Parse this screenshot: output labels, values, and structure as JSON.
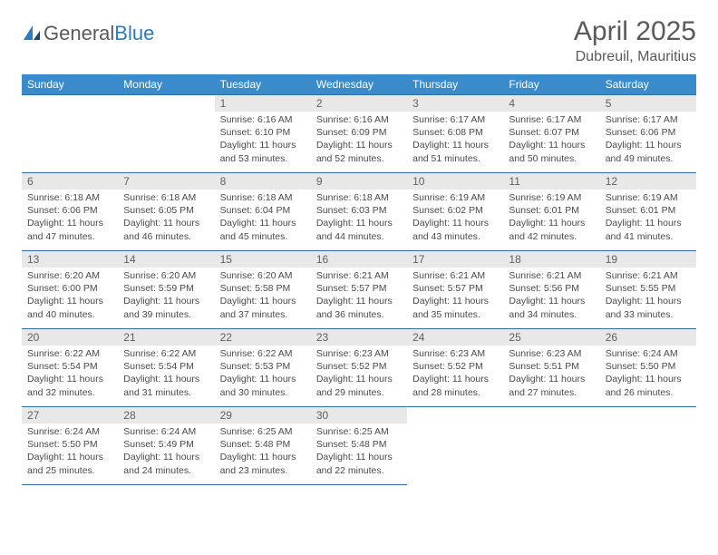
{
  "brand": {
    "part1": "General",
    "part2": "Blue"
  },
  "title": "April 2025",
  "location": "Dubreuil, Mauritius",
  "colors": {
    "header_bg": "#3b8bcb",
    "header_text": "#ffffff",
    "border": "#2f6fa8",
    "daynum_bg": "#e8e8e8",
    "text": "#4a4a4a",
    "title_text": "#5a5a5a"
  },
  "weekdays": [
    "Sunday",
    "Monday",
    "Tuesday",
    "Wednesday",
    "Thursday",
    "Friday",
    "Saturday"
  ],
  "weeks": [
    [
      null,
      null,
      {
        "n": "1",
        "sr": "Sunrise: 6:16 AM",
        "ss": "Sunset: 6:10 PM",
        "d1": "Daylight: 11 hours",
        "d2": "and 53 minutes."
      },
      {
        "n": "2",
        "sr": "Sunrise: 6:16 AM",
        "ss": "Sunset: 6:09 PM",
        "d1": "Daylight: 11 hours",
        "d2": "and 52 minutes."
      },
      {
        "n": "3",
        "sr": "Sunrise: 6:17 AM",
        "ss": "Sunset: 6:08 PM",
        "d1": "Daylight: 11 hours",
        "d2": "and 51 minutes."
      },
      {
        "n": "4",
        "sr": "Sunrise: 6:17 AM",
        "ss": "Sunset: 6:07 PM",
        "d1": "Daylight: 11 hours",
        "d2": "and 50 minutes."
      },
      {
        "n": "5",
        "sr": "Sunrise: 6:17 AM",
        "ss": "Sunset: 6:06 PM",
        "d1": "Daylight: 11 hours",
        "d2": "and 49 minutes."
      }
    ],
    [
      {
        "n": "6",
        "sr": "Sunrise: 6:18 AM",
        "ss": "Sunset: 6:06 PM",
        "d1": "Daylight: 11 hours",
        "d2": "and 47 minutes."
      },
      {
        "n": "7",
        "sr": "Sunrise: 6:18 AM",
        "ss": "Sunset: 6:05 PM",
        "d1": "Daylight: 11 hours",
        "d2": "and 46 minutes."
      },
      {
        "n": "8",
        "sr": "Sunrise: 6:18 AM",
        "ss": "Sunset: 6:04 PM",
        "d1": "Daylight: 11 hours",
        "d2": "and 45 minutes."
      },
      {
        "n": "9",
        "sr": "Sunrise: 6:18 AM",
        "ss": "Sunset: 6:03 PM",
        "d1": "Daylight: 11 hours",
        "d2": "and 44 minutes."
      },
      {
        "n": "10",
        "sr": "Sunrise: 6:19 AM",
        "ss": "Sunset: 6:02 PM",
        "d1": "Daylight: 11 hours",
        "d2": "and 43 minutes."
      },
      {
        "n": "11",
        "sr": "Sunrise: 6:19 AM",
        "ss": "Sunset: 6:01 PM",
        "d1": "Daylight: 11 hours",
        "d2": "and 42 minutes."
      },
      {
        "n": "12",
        "sr": "Sunrise: 6:19 AM",
        "ss": "Sunset: 6:01 PM",
        "d1": "Daylight: 11 hours",
        "d2": "and 41 minutes."
      }
    ],
    [
      {
        "n": "13",
        "sr": "Sunrise: 6:20 AM",
        "ss": "Sunset: 6:00 PM",
        "d1": "Daylight: 11 hours",
        "d2": "and 40 minutes."
      },
      {
        "n": "14",
        "sr": "Sunrise: 6:20 AM",
        "ss": "Sunset: 5:59 PM",
        "d1": "Daylight: 11 hours",
        "d2": "and 39 minutes."
      },
      {
        "n": "15",
        "sr": "Sunrise: 6:20 AM",
        "ss": "Sunset: 5:58 PM",
        "d1": "Daylight: 11 hours",
        "d2": "and 37 minutes."
      },
      {
        "n": "16",
        "sr": "Sunrise: 6:21 AM",
        "ss": "Sunset: 5:57 PM",
        "d1": "Daylight: 11 hours",
        "d2": "and 36 minutes."
      },
      {
        "n": "17",
        "sr": "Sunrise: 6:21 AM",
        "ss": "Sunset: 5:57 PM",
        "d1": "Daylight: 11 hours",
        "d2": "and 35 minutes."
      },
      {
        "n": "18",
        "sr": "Sunrise: 6:21 AM",
        "ss": "Sunset: 5:56 PM",
        "d1": "Daylight: 11 hours",
        "d2": "and 34 minutes."
      },
      {
        "n": "19",
        "sr": "Sunrise: 6:21 AM",
        "ss": "Sunset: 5:55 PM",
        "d1": "Daylight: 11 hours",
        "d2": "and 33 minutes."
      }
    ],
    [
      {
        "n": "20",
        "sr": "Sunrise: 6:22 AM",
        "ss": "Sunset: 5:54 PM",
        "d1": "Daylight: 11 hours",
        "d2": "and 32 minutes."
      },
      {
        "n": "21",
        "sr": "Sunrise: 6:22 AM",
        "ss": "Sunset: 5:54 PM",
        "d1": "Daylight: 11 hours",
        "d2": "and 31 minutes."
      },
      {
        "n": "22",
        "sr": "Sunrise: 6:22 AM",
        "ss": "Sunset: 5:53 PM",
        "d1": "Daylight: 11 hours",
        "d2": "and 30 minutes."
      },
      {
        "n": "23",
        "sr": "Sunrise: 6:23 AM",
        "ss": "Sunset: 5:52 PM",
        "d1": "Daylight: 11 hours",
        "d2": "and 29 minutes."
      },
      {
        "n": "24",
        "sr": "Sunrise: 6:23 AM",
        "ss": "Sunset: 5:52 PM",
        "d1": "Daylight: 11 hours",
        "d2": "and 28 minutes."
      },
      {
        "n": "25",
        "sr": "Sunrise: 6:23 AM",
        "ss": "Sunset: 5:51 PM",
        "d1": "Daylight: 11 hours",
        "d2": "and 27 minutes."
      },
      {
        "n": "26",
        "sr": "Sunrise: 6:24 AM",
        "ss": "Sunset: 5:50 PM",
        "d1": "Daylight: 11 hours",
        "d2": "and 26 minutes."
      }
    ],
    [
      {
        "n": "27",
        "sr": "Sunrise: 6:24 AM",
        "ss": "Sunset: 5:50 PM",
        "d1": "Daylight: 11 hours",
        "d2": "and 25 minutes."
      },
      {
        "n": "28",
        "sr": "Sunrise: 6:24 AM",
        "ss": "Sunset: 5:49 PM",
        "d1": "Daylight: 11 hours",
        "d2": "and 24 minutes."
      },
      {
        "n": "29",
        "sr": "Sunrise: 6:25 AM",
        "ss": "Sunset: 5:48 PM",
        "d1": "Daylight: 11 hours",
        "d2": "and 23 minutes."
      },
      {
        "n": "30",
        "sr": "Sunrise: 6:25 AM",
        "ss": "Sunset: 5:48 PM",
        "d1": "Daylight: 11 hours",
        "d2": "and 22 minutes."
      },
      null,
      null,
      null
    ]
  ]
}
